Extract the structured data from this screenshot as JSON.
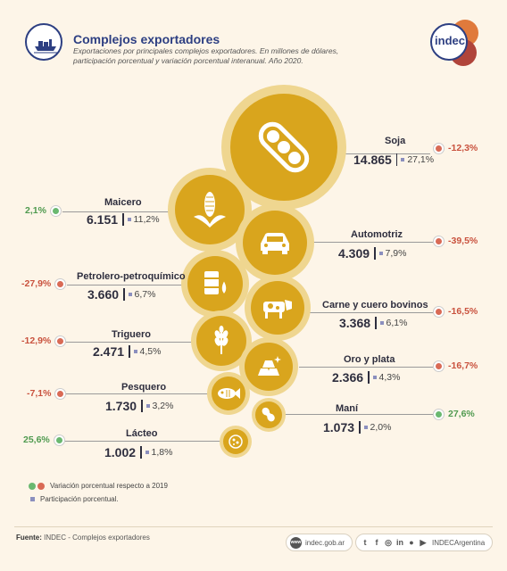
{
  "header": {
    "title": "Complejos exportadores",
    "subtitle": "Exportaciones por principales complejos exportadores. En millones de dólares, participación porcentual y variación porcentual interanual. Año 2020."
  },
  "logo": {
    "text": "indec"
  },
  "chart_data": {
    "type": "bubble",
    "title": "Complejos exportadores",
    "unit": "millones de dólares",
    "series": [
      {
        "name": "Soja",
        "value": "14.865",
        "share": "27,1%",
        "variation": "-12,3%",
        "sign": "neg",
        "icon": "soybean-icon"
      },
      {
        "name": "Maicero",
        "value": "6.151",
        "share": "11,2%",
        "variation": "2,1%",
        "sign": "pos",
        "icon": "corn-icon"
      },
      {
        "name": "Automotriz",
        "value": "4.309",
        "share": "7,9%",
        "variation": "-39,5%",
        "sign": "neg",
        "icon": "car-icon"
      },
      {
        "name": "Petrolero-petroquímico",
        "value": "3.660",
        "share": "6,7%",
        "variation": "-27,9%",
        "sign": "neg",
        "icon": "oil-barrel-icon"
      },
      {
        "name": "Carne y cuero bovinos",
        "value": "3.368",
        "share": "6,1%",
        "variation": "-16,5%",
        "sign": "neg",
        "icon": "cow-icon"
      },
      {
        "name": "Triguero",
        "value": "2.471",
        "share": "4,5%",
        "variation": "-12,9%",
        "sign": "neg",
        "icon": "wheat-icon"
      },
      {
        "name": "Oro y plata",
        "value": "2.366",
        "share": "4,3%",
        "variation": "-16,7%",
        "sign": "neg",
        "icon": "gold-bars-icon"
      },
      {
        "name": "Pesquero",
        "value": "1.730",
        "share": "3,2%",
        "variation": "-7,1%",
        "sign": "neg",
        "icon": "fish-icon"
      },
      {
        "name": "Maní",
        "value": "1.073",
        "share": "2,0%",
        "variation": "27,6%",
        "sign": "pos",
        "icon": "peanut-icon"
      },
      {
        "name": "Lácteo",
        "value": "1.002",
        "share": "1,8%",
        "variation": "25,6%",
        "sign": "pos",
        "icon": "dairy-icon"
      }
    ],
    "colors": {
      "bubble": "#d9a51d",
      "halo": "#efd690",
      "negative": "#d96a55",
      "positive": "#6ab870",
      "share": "#8b8fbe"
    }
  },
  "legend": {
    "variation": "Variación porcentual respecto a 2019",
    "share": "Participación porcentual."
  },
  "footer": {
    "source_label": "Fuente:",
    "source_text": "INDEC - Complejos exportadores",
    "website": "indec.gob.ar",
    "website_icon": "www",
    "social_handle": "INDECArgentina"
  }
}
